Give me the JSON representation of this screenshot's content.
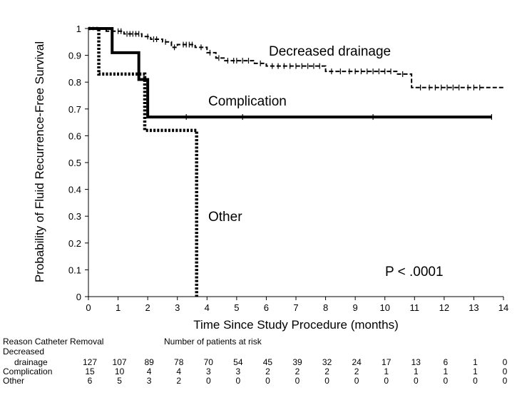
{
  "chart_data": {
    "type": "line",
    "title": "",
    "xlabel": "Time Since Study Procedure (months)",
    "ylabel": "Probability of Fluid Recurrence-Free Survival",
    "xlim": [
      0,
      14
    ],
    "ylim": [
      0,
      1
    ],
    "x_ticks": [
      "0",
      "1",
      "2",
      "3",
      "4",
      "5",
      "6",
      "7",
      "8",
      "9",
      "10",
      "11",
      "12",
      "13",
      "14"
    ],
    "y_ticks": [
      "0",
      "0.1",
      "0.2",
      "0.3",
      "0.4",
      "0.5",
      "0.6",
      "0.7",
      "0.8",
      "0.9",
      "1"
    ],
    "grid": false,
    "series": [
      {
        "name": "Decreased drainage",
        "line_style": "dashed",
        "steps": [
          [
            0,
            1.0
          ],
          [
            0.6,
            0.99
          ],
          [
            1.2,
            0.98
          ],
          [
            1.8,
            0.97
          ],
          [
            2.1,
            0.96
          ],
          [
            2.5,
            0.95
          ],
          [
            2.8,
            0.93
          ],
          [
            3.0,
            0.94
          ],
          [
            3.6,
            0.93
          ],
          [
            4.0,
            0.91
          ],
          [
            4.3,
            0.89
          ],
          [
            4.6,
            0.88
          ],
          [
            5.6,
            0.87
          ],
          [
            6.0,
            0.86
          ],
          [
            8.0,
            0.84
          ],
          [
            10.4,
            0.83
          ],
          [
            10.9,
            0.78
          ],
          [
            14.0,
            0.78
          ]
        ],
        "censor_x": [
          0.8,
          1.0,
          1.1,
          1.3,
          1.4,
          1.5,
          1.6,
          1.7,
          2.0,
          2.2,
          2.3,
          2.6,
          2.9,
          3.2,
          3.3,
          3.4,
          3.5,
          3.8,
          4.1,
          4.4,
          4.7,
          4.9,
          5.0,
          5.2,
          5.4,
          5.8,
          6.2,
          6.4,
          6.6,
          6.8,
          7.0,
          7.2,
          7.4,
          7.6,
          7.8,
          8.2,
          8.5,
          8.8,
          9.0,
          9.2,
          9.4,
          9.6,
          9.8,
          10.0,
          10.2,
          10.6,
          11.2,
          11.5,
          11.7,
          11.9,
          12.1,
          12.3,
          12.5,
          12.8,
          13.0,
          13.2
        ]
      },
      {
        "name": "Complication",
        "line_style": "solid",
        "steps": [
          [
            0,
            1.0
          ],
          [
            0.8,
            0.91
          ],
          [
            1.7,
            0.81
          ],
          [
            2.0,
            0.67
          ],
          [
            13.6,
            0.67
          ]
        ],
        "censor_x": [
          3.3,
          5.2,
          9.6,
          13.6
        ]
      },
      {
        "name": "Other",
        "line_style": "dotted",
        "steps": [
          [
            0,
            1.0
          ],
          [
            0.35,
            0.83
          ],
          [
            1.9,
            0.62
          ],
          [
            3.65,
            0.0
          ]
        ],
        "censor_x": []
      }
    ],
    "annotations": [
      {
        "text": "Decreased drainage",
        "series": "Decreased drainage"
      },
      {
        "text": "Complication",
        "series": "Complication"
      },
      {
        "text": "Other",
        "series": "Other"
      },
      {
        "text": "P < .0001"
      }
    ],
    "risk_table": {
      "header_left": "Reason Catheter Removal",
      "header_right": "Number of patients at risk",
      "times": [
        0,
        1,
        2,
        3,
        4,
        5,
        6,
        7,
        8,
        9,
        10,
        11,
        12,
        13,
        14
      ],
      "rows": [
        {
          "label_line1": "Decreased",
          "label_line2": "drainage",
          "counts": [
            127,
            107,
            89,
            78,
            70,
            54,
            45,
            39,
            32,
            24,
            17,
            13,
            6,
            1,
            0
          ]
        },
        {
          "label_line1": "",
          "label_line2": "Complication",
          "counts": [
            15,
            10,
            4,
            4,
            3,
            3,
            2,
            2,
            2,
            2,
            1,
            1,
            1,
            1,
            0
          ]
        },
        {
          "label_line1": "",
          "label_line2": "Other",
          "counts": [
            6,
            5,
            3,
            2,
            0,
            0,
            0,
            0,
            0,
            0,
            0,
            0,
            0,
            0,
            0
          ]
        }
      ]
    }
  }
}
